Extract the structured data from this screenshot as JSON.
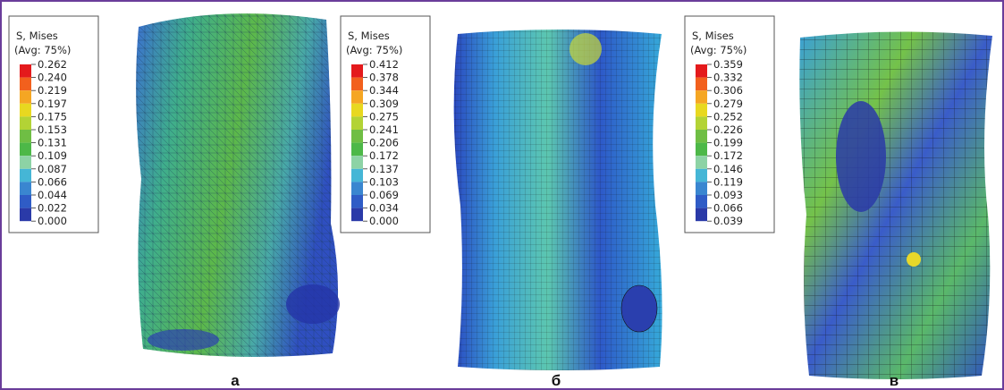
{
  "panels": [
    {
      "legend": {
        "title": "S, Mises",
        "subtitle": "(Avg: 75%)",
        "values": [
          "0.262",
          "0.240",
          "0.219",
          "0.197",
          "0.175",
          "0.153",
          "0.131",
          "0.109",
          "0.087",
          "0.066",
          "0.044",
          "0.022",
          "0.000"
        ]
      },
      "label": "а"
    },
    {
      "legend": {
        "title": "S, Mises",
        "subtitle": "(Avg: 75%)",
        "values": [
          "0.412",
          "0.378",
          "0.344",
          "0.309",
          "0.275",
          "0.241",
          "0.206",
          "0.172",
          "0.137",
          "0.103",
          "0.069",
          "0.034",
          "0.000"
        ]
      },
      "label": "б"
    },
    {
      "legend": {
        "title": "S, Mises",
        "subtitle": "(Avg: 75%)",
        "values": [
          "0.359",
          "0.332",
          "0.306",
          "0.279",
          "0.252",
          "0.226",
          "0.199",
          "0.172",
          "0.146",
          "0.119",
          "0.093",
          "0.066",
          "0.039"
        ]
      },
      "label": "в"
    }
  ]
}
